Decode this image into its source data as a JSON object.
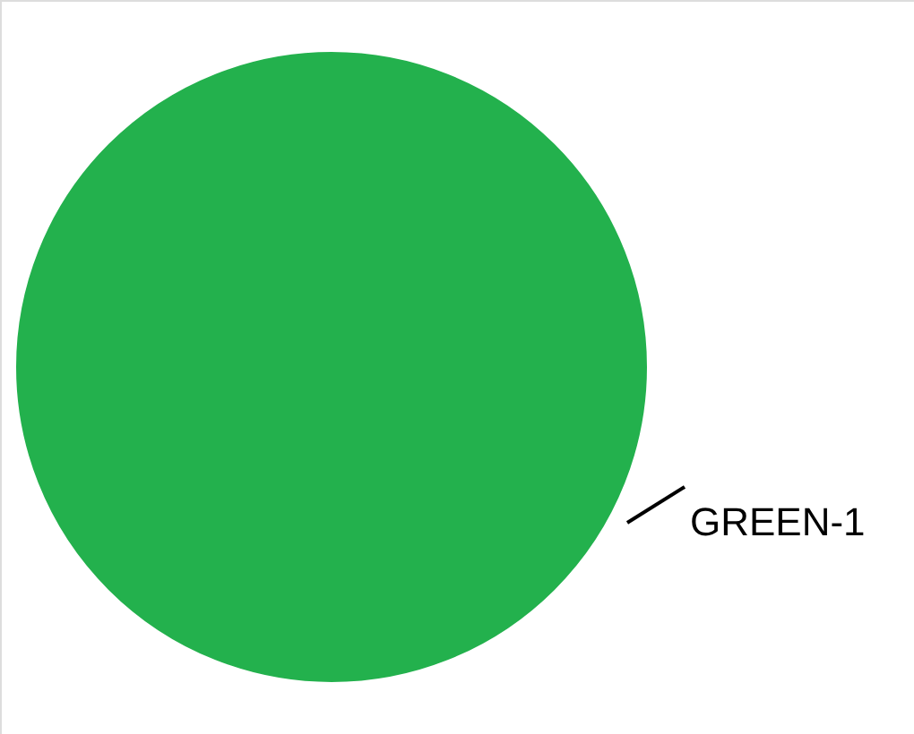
{
  "chart_data": {
    "type": "pie",
    "categories": [
      "GREEN-1"
    ],
    "values": [
      100
    ],
    "colors": [
      "#23b14d"
    ]
  }
}
